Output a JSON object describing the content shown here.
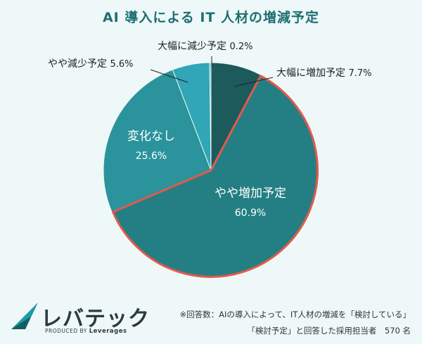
{
  "title": "AI 導入による IT 人材の増減予定",
  "chart_data": {
    "type": "pie",
    "title": "AI 導入による IT 人材の増減予定",
    "start": "12 o'clock, clockwise",
    "slices": [
      {
        "label": "大幅に増加予定",
        "value": 7.7,
        "value_text": "7.7%",
        "color": "#1c5a5c"
      },
      {
        "label": "やや増加予定",
        "value": 60.9,
        "value_text": "60.9%",
        "color": "#237f83",
        "highlighted": true
      },
      {
        "label": "変化なし",
        "value": 25.6,
        "value_text": "25.6%",
        "color": "#2a939c"
      },
      {
        "label": "やや減少予定",
        "value": 5.6,
        "value_text": "5.6%",
        "color": "#30a6b6"
      },
      {
        "label": "大幅に減少予定",
        "value": 0.2,
        "value_text": "0.2%",
        "color": "#35aec0"
      }
    ],
    "highlight_color": "#e25a4c"
  },
  "logo": {
    "name": "レバテック",
    "tagline_prefix": "PRODUCED BY",
    "tagline_brand": "Leverages"
  },
  "note": {
    "line1": "※回答数：AIの導入によって、IT人材の増減を「検討している」",
    "line2": "「検討予定」と回答した採用担当者　570 名"
  }
}
